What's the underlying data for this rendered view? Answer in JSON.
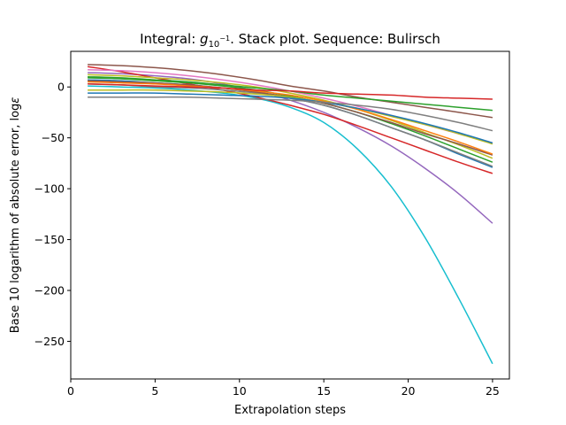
{
  "chart_data": {
    "type": "line",
    "title_prefix": "Integral: ",
    "title_math_base": "g",
    "title_math_sub": "10",
    "title_math_sup": "−1",
    "title_suffix": ". Stack plot. Sequence: Bulirsch",
    "xlabel": "Extrapolation steps",
    "ylabel_text": "Base 10 logarithm of absolute error, log",
    "ylabel_math": "ε",
    "xlim": [
      0,
      26
    ],
    "ylim": [
      -287,
      35
    ],
    "xticks": [
      0,
      5,
      10,
      15,
      20,
      25
    ],
    "yticks": [
      0,
      -50,
      -100,
      -150,
      -200,
      -250
    ],
    "grid": false,
    "legend": false,
    "x": [
      1,
      3,
      5,
      7,
      9,
      11,
      13,
      15,
      17,
      19,
      21,
      23,
      25
    ],
    "series": [
      {
        "color": "#17becf",
        "values": [
          1,
          0,
          -1,
          -3,
          -6,
          -11,
          -20,
          -35,
          -61,
          -98,
          -148,
          -208,
          -272
        ]
      },
      {
        "color": "#9467bd",
        "values": [
          14,
          13,
          11,
          8,
          3,
          -4,
          -13,
          -25,
          -40,
          -58,
          -80,
          -105,
          -134
        ]
      },
      {
        "color": "#d62728",
        "values": [
          20,
          15,
          9,
          3,
          -3,
          -10,
          -18,
          -27,
          -38,
          -50,
          -62,
          -74,
          -85
        ]
      },
      {
        "color": "#1f77b4",
        "values": [
          7,
          6,
          4,
          2,
          -1,
          -5,
          -11,
          -18,
          -28,
          -40,
          -52,
          -66,
          -79
        ]
      },
      {
        "color": "#7f7f7f",
        "values": [
          3,
          2,
          0,
          -1,
          -3,
          -6,
          -11,
          -18,
          -28,
          -40,
          -52,
          -65,
          -78
        ]
      },
      {
        "color": "#2ca02c",
        "values": [
          9,
          8,
          6,
          4,
          1,
          -3,
          -9,
          -16,
          -25,
          -36,
          -48,
          -61,
          -74
        ]
      },
      {
        "color": "#bcbd22",
        "values": [
          12,
          11,
          9,
          7,
          4,
          0,
          -6,
          -13,
          -22,
          -33,
          -45,
          -57,
          -70
        ]
      },
      {
        "color": "#8c564b",
        "values": [
          6,
          5,
          4,
          2,
          -1,
          -5,
          -10,
          -16,
          -25,
          -35,
          -46,
          -56,
          -67
        ]
      },
      {
        "color": "#ff7f0e",
        "values": [
          5,
          4,
          3,
          1,
          -1,
          -4,
          -8,
          -14,
          -22,
          -32,
          -43,
          -54,
          -66
        ]
      },
      {
        "color": "#e377c2",
        "values": [
          17,
          16,
          14,
          11,
          7,
          2,
          -4,
          -11,
          -19,
          -28,
          -37,
          -46,
          -55
        ]
      },
      {
        "color": "#bcbd22",
        "values": [
          -3,
          -3,
          -3,
          -4,
          -5,
          -7,
          -10,
          -15,
          -21,
          -29,
          -37,
          -46,
          -56
        ]
      },
      {
        "color": "#1f77b4",
        "values": [
          -6,
          -6,
          -6,
          -7,
          -8,
          -9,
          -11,
          -15,
          -21,
          -28,
          -36,
          -45,
          -55
        ]
      },
      {
        "color": "#7f7f7f",
        "values": [
          -10,
          -10,
          -10,
          -10,
          -11,
          -12,
          -13,
          -15,
          -18,
          -22,
          -28,
          -35,
          -43
        ]
      },
      {
        "color": "#8c564b",
        "values": [
          22,
          21,
          19,
          16,
          12,
          7,
          1,
          -4,
          -10,
          -15,
          -20,
          -25,
          -30
        ]
      },
      {
        "color": "#2ca02c",
        "values": [
          10,
          9,
          7,
          5,
          2,
          -1,
          -4,
          -8,
          -11,
          -14,
          -17,
          -20,
          -23
        ]
      },
      {
        "color": "#d62728",
        "values": [
          3,
          2,
          1,
          0,
          -1,
          -3,
          -4,
          -6,
          -7,
          -8,
          -10,
          -11,
          -12
        ]
      }
    ]
  }
}
